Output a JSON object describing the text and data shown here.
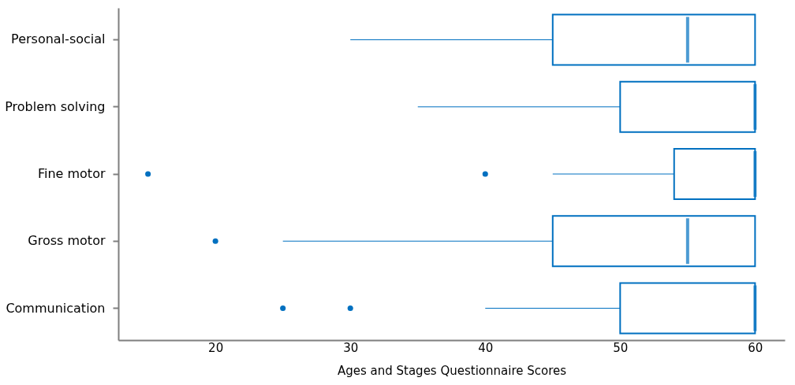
{
  "chart_data": {
    "type": "box",
    "orientation": "horizontal",
    "xlabel": "Ages and Stages Questionnaire Scores",
    "categories": [
      "Personal-social",
      "Problem solving",
      "Fine motor",
      "Gross motor",
      "Communication"
    ],
    "boxes": [
      {
        "low": 30,
        "q1": 45,
        "median": 55,
        "q3": 60,
        "high": 60
      },
      {
        "low": 35,
        "q1": 50,
        "median": 60,
        "q3": 60,
        "high": 60
      },
      {
        "low": 45,
        "q1": 54,
        "median": 60,
        "q3": 60,
        "high": 60,
        "outliers": [
          15,
          40
        ]
      },
      {
        "low": 25,
        "q1": 45,
        "median": 55,
        "q3": 60,
        "high": 60,
        "outliers": [
          20
        ]
      },
      {
        "low": 40,
        "q1": 50,
        "median": 60,
        "q3": 60,
        "high": 60,
        "outliers": [
          25,
          30
        ]
      }
    ],
    "color": "#0070c0",
    "xlim": [
      12.8,
      62.2
    ],
    "xticks": [
      20,
      30,
      40,
      50,
      60
    ],
    "grid": false
  }
}
